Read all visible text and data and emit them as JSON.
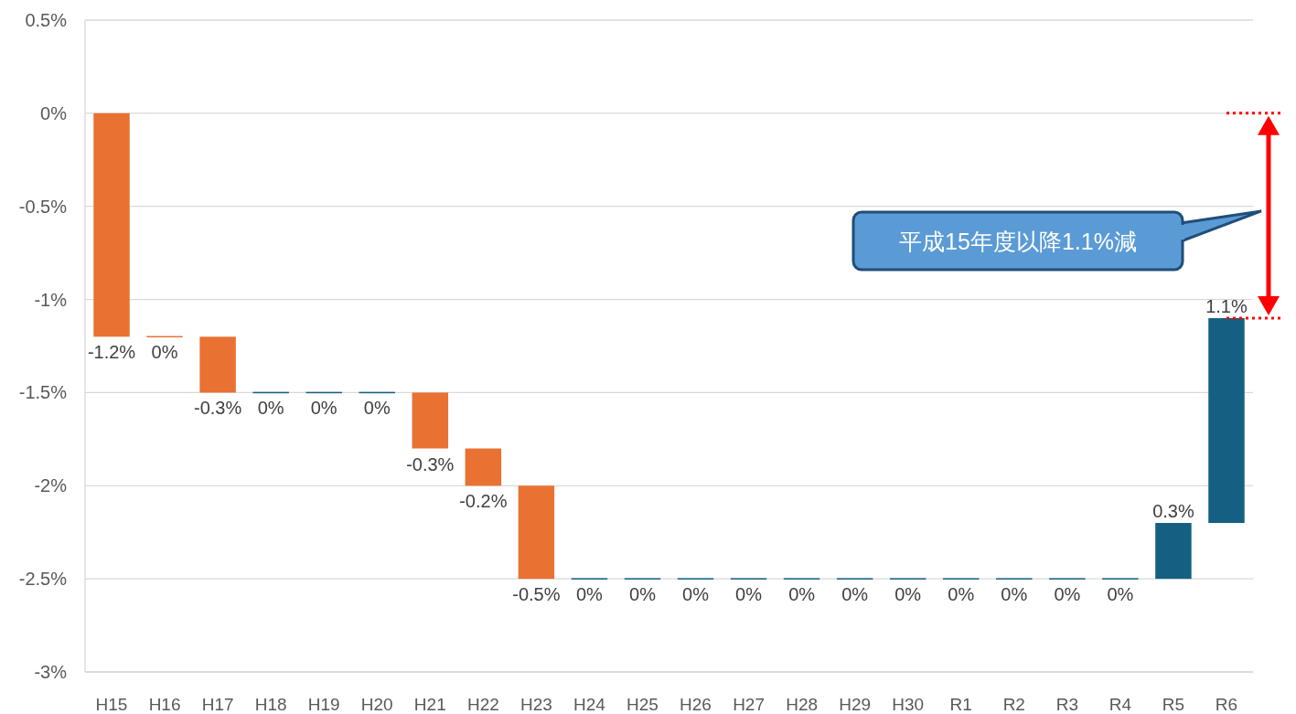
{
  "chart_data": {
    "type": "bar",
    "categories": [
      "H15",
      "H16",
      "H17",
      "H18",
      "H19",
      "H20",
      "H21",
      "H22",
      "H23",
      "H24",
      "H25",
      "H26",
      "H27",
      "H28",
      "H29",
      "H30",
      "R1",
      "R2",
      "R3",
      "R4",
      "R5",
      "R6"
    ],
    "values": [
      -1.2,
      0,
      -0.3,
      0,
      0,
      0,
      -0.3,
      -0.2,
      -0.5,
      0,
      0,
      0,
      0,
      0,
      0,
      0,
      0,
      0,
      0,
      0,
      0.3,
      1.1
    ],
    "base": [
      0,
      -1.2,
      -1.2,
      -1.5,
      -1.5,
      -1.5,
      -1.5,
      -1.8,
      -2.0,
      -2.5,
      -2.5,
      -2.5,
      -2.5,
      -2.5,
      -2.5,
      -2.5,
      -2.5,
      -2.5,
      -2.5,
      -2.5,
      -2.5,
      -2.2
    ],
    "colors": [
      "#e97132",
      "#e97132",
      "#e97132",
      "#156082",
      "#156082",
      "#156082",
      "#e97132",
      "#e97132",
      "#e97132",
      "#156082",
      "#156082",
      "#156082",
      "#156082",
      "#156082",
      "#156082",
      "#156082",
      "#156082",
      "#156082",
      "#156082",
      "#156082",
      "#156082",
      "#156082"
    ],
    "value_labels": [
      "-1.2%",
      "0%",
      "-0.3%",
      "0%",
      "0%",
      "0%",
      "-0.3%",
      "-0.2%",
      "-0.5%",
      "0%",
      "0%",
      "0%",
      "0%",
      "0%",
      "0%",
      "0%",
      "0%",
      "0%",
      "0%",
      "0%",
      "0.3%",
      "1.1%"
    ],
    "ylim": [
      -3,
      0.5
    ],
    "yticks": [
      {
        "value": 0.5,
        "label": "0.5%"
      },
      {
        "value": 0,
        "label": "0%"
      },
      {
        "value": -0.5,
        "label": "-0.5%"
      },
      {
        "value": -1,
        "label": "-1%"
      },
      {
        "value": -1.5,
        "label": "-1.5%"
      },
      {
        "value": -2,
        "label": "-2%"
      },
      {
        "value": -2.5,
        "label": "-2.5%"
      },
      {
        "value": -3,
        "label": "-3%"
      }
    ],
    "grid": "y",
    "annotations": [
      "平成15年度以降1.1%減"
    ]
  }
}
